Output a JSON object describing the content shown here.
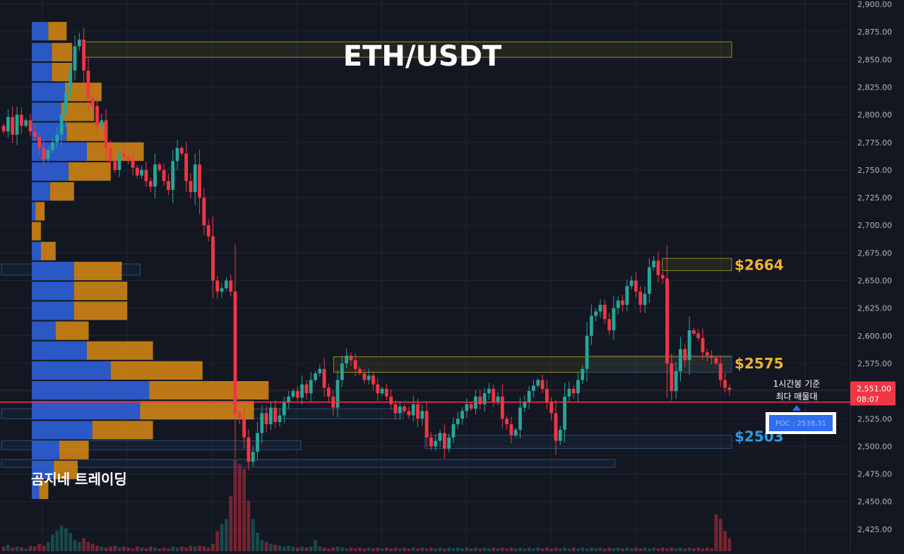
{
  "chart_data": {
    "type": "candlestick",
    "title": "ETH/USDT",
    "watermark": "곰지네 트레이딩",
    "colors": {
      "background": "#131722",
      "bull": "#26a69a",
      "bear": "#f23645",
      "grid": "#1f2430",
      "zone_gold": "#9a8a22",
      "zone_blue": "#2a4f7c",
      "level_gold": "#f0b32b",
      "level_blue": "#2a9de6",
      "vp_buy": "#2d5fd6",
      "vp_sell": "#d98a12"
    },
    "y_axis": {
      "range": [
        2418,
        2903
      ],
      "ticks": [
        "2,900.00",
        "2,875.00",
        "2,850.00",
        "2,825.00",
        "2,800.00",
        "2,775.00",
        "2,750.00",
        "2,725.00",
        "2,700.00",
        "2,675.00",
        "2,650.00",
        "2,625.00",
        "2,600.00",
        "2,575.00",
        "2,550.00",
        "2,525.00",
        "2,500.00",
        "2,475.00",
        "2,450.00",
        "2,425.00"
      ],
      "tick_values": [
        2900,
        2875,
        2850,
        2825,
        2800,
        2775,
        2750,
        2725,
        2700,
        2675,
        2650,
        2625,
        2600,
        2575,
        2550,
        2525,
        2500,
        2475,
        2450,
        2425
      ]
    },
    "level_labels": [
      {
        "text": "$2664",
        "price": 2664,
        "style": "gold"
      },
      {
        "text": "$2575",
        "price": 2575,
        "style": "gold"
      },
      {
        "text": "$2503",
        "price": 2503,
        "style": "blue"
      }
    ],
    "current_price": {
      "label": "2,551.00",
      "time": "08:07",
      "value": 2551
    },
    "poc": {
      "label": "POC : 2538.31",
      "value": 2538.31,
      "note_line1": "1시간봉 기준",
      "note_line2": "최다 매물대"
    },
    "zones": [
      {
        "from": 2852,
        "to": 2866,
        "t0": 0.114,
        "t1": 1.0,
        "style": "gold"
      },
      {
        "from": 2659,
        "to": 2670,
        "t0": 0.905,
        "t1": 1.0,
        "style": "gold"
      },
      {
        "from": 2567,
        "to": 2581,
        "t0": 0.455,
        "t1": 1.0,
        "style": "gold"
      },
      {
        "from": 2567,
        "to": 2582,
        "t0": 0.8,
        "t1": 1.0,
        "style": "blue"
      },
      {
        "from": 2498,
        "to": 2510,
        "t0": 0.58,
        "t1": 1.0,
        "style": "blue"
      },
      {
        "from": 2525,
        "to": 2534,
        "t0": 0.0,
        "t1": 0.55,
        "style": "blue"
      },
      {
        "from": 2497,
        "to": 2505,
        "t0": 0.0,
        "t1": 0.41,
        "style": "blue"
      },
      {
        "from": 2481,
        "to": 2488,
        "t0": 0.0,
        "t1": 0.84,
        "style": "blue"
      },
      {
        "from": 2655,
        "to": 2665,
        "t0": 0.0,
        "t1": 0.19,
        "style": "blue"
      }
    ],
    "volume_profile": [
      {
        "price": 2875,
        "buy": 0.09,
        "sell": 0.1
      },
      {
        "price": 2856,
        "buy": 0.11,
        "sell": 0.11
      },
      {
        "price": 2838,
        "buy": 0.11,
        "sell": 0.11
      },
      {
        "price": 2820,
        "buy": 0.18,
        "sell": 0.2
      },
      {
        "price": 2802,
        "buy": 0.16,
        "sell": 0.18
      },
      {
        "price": 2784,
        "buy": 0.19,
        "sell": 0.21
      },
      {
        "price": 2766,
        "buy": 0.3,
        "sell": 0.31
      },
      {
        "price": 2748,
        "buy": 0.2,
        "sell": 0.23
      },
      {
        "price": 2730,
        "buy": 0.1,
        "sell": 0.13
      },
      {
        "price": 2712,
        "buy": 0.02,
        "sell": 0.05
      },
      {
        "price": 2694,
        "buy": 0.0,
        "sell": 0.05
      },
      {
        "price": 2676,
        "buy": 0.05,
        "sell": 0.08
      },
      {
        "price": 2658,
        "buy": 0.23,
        "sell": 0.26
      },
      {
        "price": 2640,
        "buy": 0.23,
        "sell": 0.29
      },
      {
        "price": 2622,
        "buy": 0.23,
        "sell": 0.29
      },
      {
        "price": 2604,
        "buy": 0.13,
        "sell": 0.18
      },
      {
        "price": 2586,
        "buy": 0.3,
        "sell": 0.36
      },
      {
        "price": 2568,
        "buy": 0.43,
        "sell": 0.5
      },
      {
        "price": 2550,
        "buy": 0.64,
        "sell": 0.65
      },
      {
        "price": 2532,
        "buy": 0.59,
        "sell": 0.62
      },
      {
        "price": 2514,
        "buy": 0.33,
        "sell": 0.33
      },
      {
        "price": 2496,
        "buy": 0.15,
        "sell": 0.16
      },
      {
        "price": 2478,
        "buy": 0.12,
        "sell": 0.13
      },
      {
        "price": 2460,
        "buy": 0.04,
        "sell": 0.05
      }
    ],
    "price_path": [
      2790,
      2785,
      2798,
      2782,
      2800,
      2790,
      2795,
      2785,
      2780,
      2770,
      2760,
      2768,
      2775,
      2782,
      2800,
      2820,
      2840,
      2862,
      2868,
      2840,
      2815,
      2808,
      2790,
      2795,
      2770,
      2758,
      2750,
      2765,
      2762,
      2760,
      2752,
      2745,
      2750,
      2740,
      2735,
      2755,
      2750,
      2740,
      2732,
      2758,
      2770,
      2765,
      2740,
      2730,
      2755,
      2725,
      2700,
      2690,
      2650,
      2640,
      2643,
      2650,
      2640,
      2530,
      2525,
      2508,
      2486,
      2495,
      2512,
      2530,
      2520,
      2535,
      2522,
      2528,
      2540,
      2545,
      2550,
      2544,
      2556,
      2548,
      2560,
      2566,
      2570,
      2553,
      2545,
      2535,
      2560,
      2575,
      2582,
      2578,
      2570,
      2566,
      2560,
      2564,
      2556,
      2548,
      2552,
      2545,
      2538,
      2530,
      2536,
      2532,
      2528,
      2538,
      2525,
      2532,
      2508,
      2500,
      2505,
      2512,
      2498,
      2508,
      2520,
      2525,
      2532,
      2538,
      2534,
      2545,
      2538,
      2548,
      2552,
      2540,
      2545,
      2525,
      2520,
      2510,
      2515,
      2535,
      2540,
      2550,
      2555,
      2560,
      2552,
      2540,
      2530,
      2505,
      2515,
      2545,
      2552,
      2548,
      2560,
      2570,
      2600,
      2618,
      2622,
      2628,
      2615,
      2605,
      2625,
      2632,
      2628,
      2645,
      2650,
      2640,
      2628,
      2638,
      2662,
      2668,
      2655,
      2652,
      2575,
      2550,
      2568,
      2588,
      2578,
      2605,
      2602,
      2598,
      2585,
      2582,
      2580,
      2575,
      2560,
      2553,
      2551
    ],
    "volumes": [
      0.05,
      0.07,
      0.04,
      0.05,
      0.04,
      0.03,
      0.06,
      0.05,
      0.08,
      0.06,
      0.1,
      0.18,
      0.22,
      0.28,
      0.25,
      0.2,
      0.12,
      0.1,
      0.14,
      0.1,
      0.08,
      0.06,
      0.05,
      0.04,
      0.05,
      0.06,
      0.04,
      0.05,
      0.04,
      0.03,
      0.05,
      0.04,
      0.03,
      0.05,
      0.04,
      0.03,
      0.04,
      0.03,
      0.05,
      0.04,
      0.05,
      0.04,
      0.06,
      0.05,
      0.06,
      0.05,
      0.04,
      0.08,
      0.22,
      0.3,
      0.35,
      0.6,
      1.0,
      0.95,
      0.9,
      0.55,
      0.35,
      0.2,
      0.12,
      0.1,
      0.08,
      0.07,
      0.06,
      0.05,
      0.06,
      0.05,
      0.04,
      0.05,
      0.04,
      0.05,
      0.12,
      0.05,
      0.04,
      0.03,
      0.04,
      0.05,
      0.04,
      0.03,
      0.04,
      0.03,
      0.04,
      0.03,
      0.04,
      0.03,
      0.04,
      0.03,
      0.04,
      0.03,
      0.04,
      0.03,
      0.04,
      0.03,
      0.04,
      0.03,
      0.04,
      0.03,
      0.04,
      0.03,
      0.04,
      0.03,
      0.04,
      0.03,
      0.04,
      0.03,
      0.04,
      0.03,
      0.04,
      0.03,
      0.04,
      0.03,
      0.04,
      0.03,
      0.04,
      0.03,
      0.04,
      0.03,
      0.04,
      0.03,
      0.04,
      0.03,
      0.04,
      0.03,
      0.04,
      0.03,
      0.04,
      0.03,
      0.04,
      0.03,
      0.04,
      0.03,
      0.04,
      0.03,
      0.04,
      0.03,
      0.04,
      0.03,
      0.04,
      0.03,
      0.04,
      0.03,
      0.04,
      0.03,
      0.04,
      0.03,
      0.04,
      0.03,
      0.04,
      0.03,
      0.04,
      0.03,
      0.04,
      0.03,
      0.04,
      0.03,
      0.04,
      0.03,
      0.04,
      0.03,
      0.04,
      0.03,
      0.4,
      0.35,
      0.22,
      0.14,
      0.1,
      0.08,
      0.06,
      0.05,
      0.04,
      0.04,
      0.03,
      0.03,
      0.03,
      0.03
    ]
  }
}
